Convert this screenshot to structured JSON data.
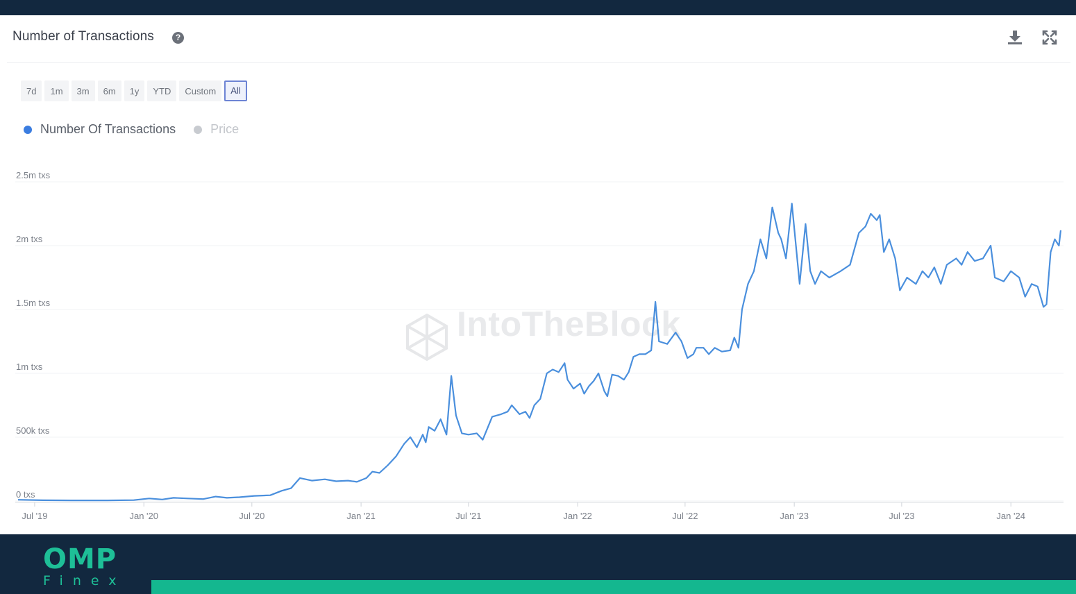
{
  "header": {
    "title": "Number of Transactions",
    "help_icon": "help-icon",
    "actions": [
      {
        "name": "download-icon"
      },
      {
        "name": "fullscreen-icon"
      }
    ]
  },
  "range_buttons": [
    {
      "label": "7d",
      "active": false
    },
    {
      "label": "1m",
      "active": false
    },
    {
      "label": "3m",
      "active": false
    },
    {
      "label": "6m",
      "active": false
    },
    {
      "label": "1y",
      "active": false
    },
    {
      "label": "YTD",
      "active": false
    },
    {
      "label": "Custom",
      "active": false
    },
    {
      "label": "All",
      "active": true
    }
  ],
  "legend": [
    {
      "label": "Number Of Transactions",
      "color": "#3b7de0",
      "enabled": true
    },
    {
      "label": "Price",
      "color": "#c8cbd0",
      "enabled": false
    }
  ],
  "watermark": "IntoTheBlock",
  "branding": {
    "logo_top": "OMP",
    "logo_bottom": "Finex",
    "accent": "#14b78f",
    "background": "#12283f"
  },
  "chart_data": {
    "type": "line",
    "title": "Number of Transactions",
    "xlabel": "",
    "ylabel": "",
    "grid": true,
    "legend_position": "top-left",
    "ylim": [
      0,
      2500000
    ],
    "x_range": [
      "2019-06-03",
      "2024-03-25"
    ],
    "y_ticks": [
      {
        "value": 0,
        "label": "0 txs"
      },
      {
        "value": 500000,
        "label": "500k txs"
      },
      {
        "value": 1000000,
        "label": "1m txs"
      },
      {
        "value": 1500000,
        "label": "1.5m txs"
      },
      {
        "value": 2000000,
        "label": "2m txs"
      },
      {
        "value": 2500000,
        "label": "2.5m txs"
      }
    ],
    "x_ticks": [
      {
        "date": "2019-07-01",
        "label": "Jul '19"
      },
      {
        "date": "2020-01-01",
        "label": "Jan '20"
      },
      {
        "date": "2020-07-01",
        "label": "Jul '20"
      },
      {
        "date": "2021-01-01",
        "label": "Jan '21"
      },
      {
        "date": "2021-07-01",
        "label": "Jul '21"
      },
      {
        "date": "2022-01-01",
        "label": "Jan '22"
      },
      {
        "date": "2022-07-01",
        "label": "Jul '22"
      },
      {
        "date": "2023-01-01",
        "label": "Jan '23"
      },
      {
        "date": "2023-07-01",
        "label": "Jul '23"
      },
      {
        "date": "2024-01-01",
        "label": "Jan '24"
      }
    ],
    "series": [
      {
        "name": "Number Of Transactions",
        "color": "#4a8fdd",
        "points": [
          [
            "2019-06-03",
            10000
          ],
          [
            "2019-07-15",
            6000
          ],
          [
            "2019-09-01",
            5000
          ],
          [
            "2019-11-01",
            5000
          ],
          [
            "2019-12-15",
            7000
          ],
          [
            "2020-01-10",
            20000
          ],
          [
            "2020-02-01",
            12000
          ],
          [
            "2020-02-20",
            25000
          ],
          [
            "2020-03-15",
            20000
          ],
          [
            "2020-04-10",
            15000
          ],
          [
            "2020-05-01",
            35000
          ],
          [
            "2020-05-20",
            25000
          ],
          [
            "2020-06-10",
            30000
          ],
          [
            "2020-07-05",
            40000
          ],
          [
            "2020-08-01",
            45000
          ],
          [
            "2020-08-20",
            80000
          ],
          [
            "2020-09-05",
            100000
          ],
          [
            "2020-09-20",
            180000
          ],
          [
            "2020-10-10",
            160000
          ],
          [
            "2020-11-01",
            170000
          ],
          [
            "2020-11-20",
            155000
          ],
          [
            "2020-12-10",
            160000
          ],
          [
            "2020-12-25",
            150000
          ],
          [
            "2021-01-10",
            180000
          ],
          [
            "2021-01-20",
            230000
          ],
          [
            "2021-02-01",
            220000
          ],
          [
            "2021-02-15",
            280000
          ],
          [
            "2021-03-01",
            350000
          ],
          [
            "2021-03-15",
            450000
          ],
          [
            "2021-03-25",
            500000
          ],
          [
            "2021-04-05",
            420000
          ],
          [
            "2021-04-15",
            520000
          ],
          [
            "2021-04-20",
            460000
          ],
          [
            "2021-04-25",
            580000
          ],
          [
            "2021-05-05",
            550000
          ],
          [
            "2021-05-15",
            640000
          ],
          [
            "2021-05-25",
            520000
          ],
          [
            "2021-06-02",
            980000
          ],
          [
            "2021-06-10",
            670000
          ],
          [
            "2021-06-20",
            530000
          ],
          [
            "2021-07-01",
            520000
          ],
          [
            "2021-07-15",
            530000
          ],
          [
            "2021-07-25",
            480000
          ],
          [
            "2021-08-10",
            660000
          ],
          [
            "2021-08-25",
            680000
          ],
          [
            "2021-09-05",
            700000
          ],
          [
            "2021-09-12",
            750000
          ],
          [
            "2021-09-25",
            680000
          ],
          [
            "2021-10-05",
            700000
          ],
          [
            "2021-10-12",
            650000
          ],
          [
            "2021-10-20",
            750000
          ],
          [
            "2021-10-30",
            800000
          ],
          [
            "2021-11-10",
            1000000
          ],
          [
            "2021-11-20",
            1030000
          ],
          [
            "2021-11-30",
            1010000
          ],
          [
            "2021-12-10",
            1080000
          ],
          [
            "2021-12-15",
            950000
          ],
          [
            "2021-12-25",
            880000
          ],
          [
            "2022-01-05",
            920000
          ],
          [
            "2022-01-12",
            840000
          ],
          [
            "2022-01-20",
            900000
          ],
          [
            "2022-01-28",
            940000
          ],
          [
            "2022-02-05",
            1000000
          ],
          [
            "2022-02-15",
            860000
          ],
          [
            "2022-02-20",
            820000
          ],
          [
            "2022-02-28",
            990000
          ],
          [
            "2022-03-10",
            980000
          ],
          [
            "2022-03-20",
            950000
          ],
          [
            "2022-03-28",
            1010000
          ],
          [
            "2022-04-05",
            1130000
          ],
          [
            "2022-04-15",
            1150000
          ],
          [
            "2022-04-25",
            1150000
          ],
          [
            "2022-05-05",
            1180000
          ],
          [
            "2022-05-12",
            1560000
          ],
          [
            "2022-05-18",
            1250000
          ],
          [
            "2022-06-01",
            1230000
          ],
          [
            "2022-06-15",
            1320000
          ],
          [
            "2022-06-25",
            1250000
          ],
          [
            "2022-07-05",
            1120000
          ],
          [
            "2022-07-15",
            1150000
          ],
          [
            "2022-07-20",
            1200000
          ],
          [
            "2022-08-01",
            1200000
          ],
          [
            "2022-08-10",
            1150000
          ],
          [
            "2022-08-20",
            1200000
          ],
          [
            "2022-09-01",
            1170000
          ],
          [
            "2022-09-15",
            1180000
          ],
          [
            "2022-09-22",
            1280000
          ],
          [
            "2022-09-29",
            1200000
          ],
          [
            "2022-10-05",
            1500000
          ],
          [
            "2022-10-15",
            1700000
          ],
          [
            "2022-10-25",
            1800000
          ],
          [
            "2022-11-05",
            2050000
          ],
          [
            "2022-11-15",
            1900000
          ],
          [
            "2022-11-25",
            2300000
          ],
          [
            "2022-12-05",
            2100000
          ],
          [
            "2022-12-10",
            2050000
          ],
          [
            "2022-12-18",
            1900000
          ],
          [
            "2022-12-28",
            2330000
          ],
          [
            "2023-01-10",
            1700000
          ],
          [
            "2023-01-20",
            2170000
          ],
          [
            "2023-01-28",
            1800000
          ],
          [
            "2023-02-05",
            1700000
          ],
          [
            "2023-02-15",
            1800000
          ],
          [
            "2023-03-01",
            1750000
          ],
          [
            "2023-03-20",
            1800000
          ],
          [
            "2023-04-05",
            1850000
          ],
          [
            "2023-04-20",
            2100000
          ],
          [
            "2023-05-01",
            2150000
          ],
          [
            "2023-05-10",
            2250000
          ],
          [
            "2023-05-20",
            2200000
          ],
          [
            "2023-05-25",
            2240000
          ],
          [
            "2023-06-01",
            1950000
          ],
          [
            "2023-06-10",
            2050000
          ],
          [
            "2023-06-20",
            1900000
          ],
          [
            "2023-06-28",
            1650000
          ],
          [
            "2023-07-10",
            1750000
          ],
          [
            "2023-07-25",
            1700000
          ],
          [
            "2023-08-05",
            1800000
          ],
          [
            "2023-08-15",
            1750000
          ],
          [
            "2023-08-25",
            1830000
          ],
          [
            "2023-09-05",
            1700000
          ],
          [
            "2023-09-15",
            1850000
          ],
          [
            "2023-10-01",
            1900000
          ],
          [
            "2023-10-10",
            1850000
          ],
          [
            "2023-10-20",
            1950000
          ],
          [
            "2023-11-01",
            1880000
          ],
          [
            "2023-11-15",
            1900000
          ],
          [
            "2023-11-28",
            2000000
          ],
          [
            "2023-12-05",
            1750000
          ],
          [
            "2023-12-20",
            1720000
          ],
          [
            "2024-01-01",
            1800000
          ],
          [
            "2024-01-15",
            1750000
          ],
          [
            "2024-01-25",
            1600000
          ],
          [
            "2024-02-05",
            1700000
          ],
          [
            "2024-02-15",
            1680000
          ],
          [
            "2024-02-25",
            1520000
          ],
          [
            "2024-03-01",
            1540000
          ],
          [
            "2024-03-08",
            1950000
          ],
          [
            "2024-03-15",
            2050000
          ],
          [
            "2024-03-22",
            2000000
          ],
          [
            "2024-03-25",
            2120000
          ]
        ]
      }
    ]
  }
}
